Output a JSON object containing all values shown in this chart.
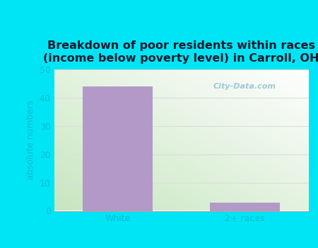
{
  "categories": [
    "White",
    "2+ races"
  ],
  "values": [
    44,
    3
  ],
  "bar_color": "#b399c8",
  "title": "Breakdown of poor residents within races\n(income below poverty level) in Carroll, OH",
  "ylabel": "absolute numbers",
  "ylim": [
    0,
    50
  ],
  "yticks": [
    0,
    10,
    20,
    30,
    40,
    50
  ],
  "bg_outer": "#00e5f5",
  "bg_inner_topleft": "#c8e6c0",
  "bg_inner_bottomright": "#ffffff",
  "title_fontsize": 11.5,
  "label_fontsize": 9,
  "tick_fontsize": 9,
  "bar_width": 0.55,
  "watermark": "City-Data.com",
  "tick_color": "#00bcd4",
  "grid_color": "#dddddd"
}
